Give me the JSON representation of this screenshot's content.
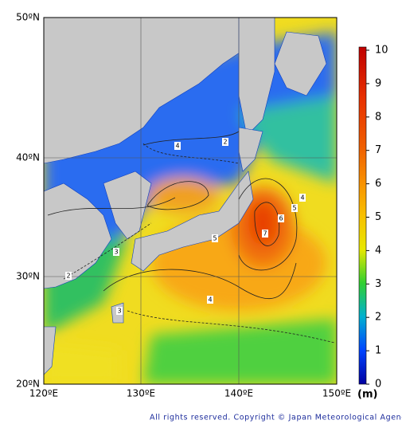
{
  "map": {
    "lat_labels": [
      "50ºN",
      "40ºN",
      "30ºN",
      "20ºN"
    ],
    "lon_labels": [
      "120ºE",
      "130ºE",
      "140ºE",
      "150ºE"
    ],
    "colorbar": {
      "lim": [
        0,
        10
      ],
      "ticks": [
        0,
        1,
        2,
        3,
        4,
        5,
        6,
        7,
        8,
        9,
        10
      ],
      "unit": "(m)"
    },
    "contour_labels": [
      4,
      2,
      4,
      5,
      6,
      7,
      5,
      3,
      2,
      4,
      3
    ],
    "copyright": "All rights reserved. Copyright © Japan Meteorological Agency"
  }
}
